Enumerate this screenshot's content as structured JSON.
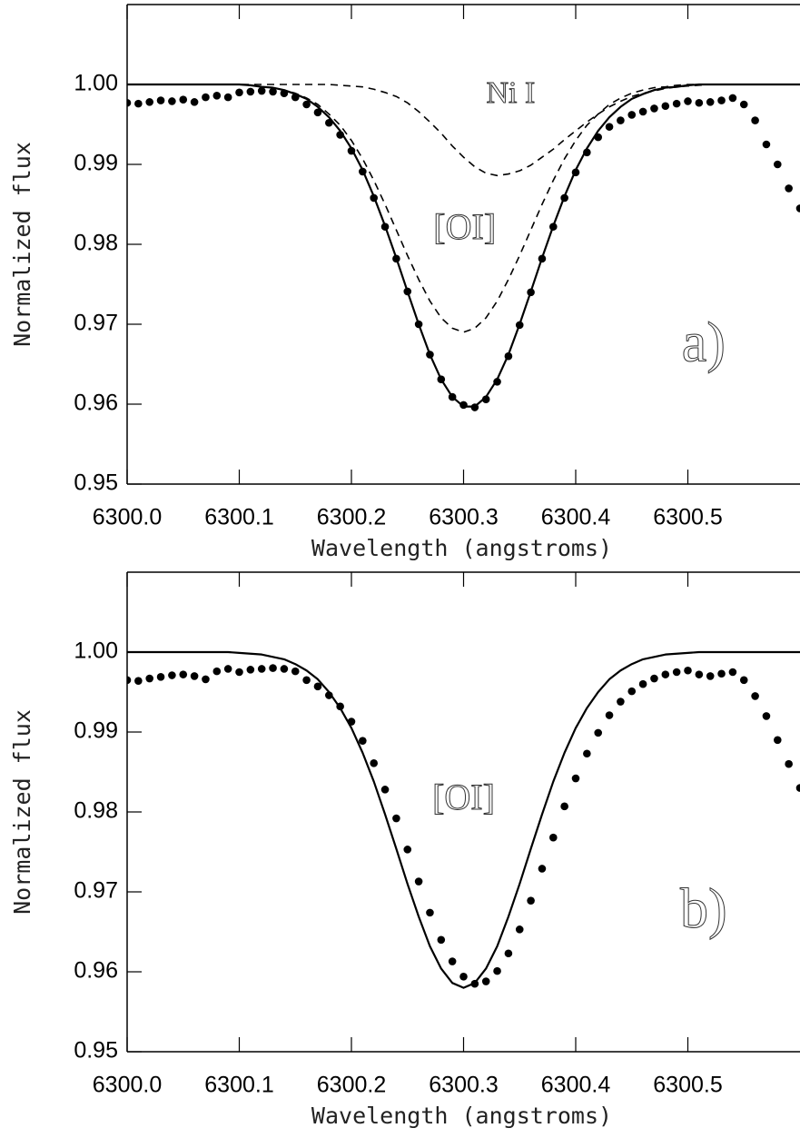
{
  "chart_data": [
    {
      "type": "line",
      "x_label": "Wavelength (angstroms)",
      "y_label": "Normalized flux",
      "x": [
        6300,
        6300.01,
        6300.02,
        6300.03,
        6300.04,
        6300.05,
        6300.06,
        6300.07,
        6300.08,
        6300.09,
        6300.1,
        6300.11,
        6300.12,
        6300.13,
        6300.14,
        6300.15,
        6300.16,
        6300.17,
        6300.18,
        6300.19,
        6300.2,
        6300.21,
        6300.22,
        6300.23,
        6300.24,
        6300.25,
        6300.26,
        6300.27,
        6300.28,
        6300.29,
        6300.3,
        6300.31,
        6300.32,
        6300.33,
        6300.34,
        6300.35,
        6300.36,
        6300.37,
        6300.38,
        6300.39,
        6300.4,
        6300.41,
        6300.42,
        6300.43,
        6300.44,
        6300.45,
        6300.46,
        6300.47,
        6300.48,
        6300.49,
        6300.5,
        6300.51,
        6300.52,
        6300.53,
        6300.54,
        6300.55,
        6300.56,
        6300.57,
        6300.58,
        6300.59,
        6300.6
      ],
      "series": [
        {
          "style": "dots",
          "color": "#000000",
          "values": [
            0.9977,
            0.9976,
            0.9978,
            0.998,
            0.9979,
            0.9981,
            0.9978,
            0.9984,
            0.9986,
            0.9984,
            0.999,
            0.9991,
            0.9992,
            0.9991,
            0.9989,
            0.9984,
            0.9975,
            0.9965,
            0.9952,
            0.9937,
            0.9917,
            0.9891,
            0.9858,
            0.9822,
            0.9782,
            0.9741,
            0.97,
            0.9662,
            0.9631,
            0.9609,
            0.9599,
            0.9596,
            0.9606,
            0.9628,
            0.966,
            0.9699,
            0.974,
            0.9782,
            0.9822,
            0.9858,
            0.989,
            0.9915,
            0.9934,
            0.9947,
            0.9955,
            0.9962,
            0.9966,
            0.997,
            0.9973,
            0.9976,
            0.9979,
            0.9977,
            0.9978,
            0.998,
            0.9983,
            0.9975,
            0.9955,
            0.9925,
            0.99,
            0.987,
            0.9845
          ]
        },
        {
          "style": "solid",
          "color": "#000000",
          "values": [
            1,
            1,
            1,
            1,
            1,
            1,
            1,
            1,
            1,
            1,
            1,
            0.9999,
            0.9997,
            0.9996,
            0.9993,
            0.9988,
            0.9982,
            0.9972,
            0.9959,
            0.9942,
            0.992,
            0.9893,
            0.986,
            0.9823,
            0.9783,
            0.9741,
            0.97,
            0.9662,
            0.9631,
            0.9609,
            0.9597,
            0.9597,
            0.9609,
            0.9631,
            0.9662,
            0.97,
            0.9741,
            0.9783,
            0.9823,
            0.986,
            0.9893,
            0.992,
            0.9942,
            0.9959,
            0.9972,
            0.9982,
            0.9988,
            0.9993,
            0.9996,
            0.9997,
            0.9999,
            1,
            1,
            1,
            1,
            1,
            1,
            1,
            1,
            1,
            1
          ]
        },
        {
          "style": "dashed",
          "color": "#000000",
          "values": [
            1,
            1,
            1,
            1,
            1,
            1,
            1,
            1,
            1,
            1,
            1,
            0.9999,
            0.9997,
            0.9996,
            0.9993,
            0.9989,
            0.9983,
            0.9975,
            0.9963,
            0.9949,
            0.993,
            0.9907,
            0.988,
            0.985,
            0.9818,
            0.9786,
            0.9756,
            0.9729,
            0.9708,
            0.9695,
            0.969,
            0.9695,
            0.9708,
            0.9729,
            0.9756,
            0.9786,
            0.9818,
            0.985,
            0.988,
            0.9907,
            0.993,
            0.9949,
            0.9963,
            0.9975,
            0.9983,
            0.9989,
            0.9993,
            0.9996,
            0.9997,
            0.9999,
            1,
            1,
            1,
            1,
            1,
            1,
            1,
            1,
            1,
            1,
            1
          ]
        },
        {
          "style": "dashed",
          "color": "#000000",
          "values": [
            1,
            1,
            1,
            1,
            1,
            1,
            1,
            1,
            1,
            1,
            1,
            1,
            1,
            1,
            1,
            1,
            1,
            1,
            1,
            0.9999,
            0.9998,
            0.9997,
            0.9994,
            0.999,
            0.9985,
            0.9977,
            0.9966,
            0.9953,
            0.9939,
            0.9923,
            0.9909,
            0.9897,
            0.9889,
            0.9886,
            0.9888,
            0.9892,
            0.9899,
            0.9909,
            0.9919,
            0.9931,
            0.9942,
            0.9953,
            0.9963,
            0.9972,
            0.9979,
            0.9985,
            0.9989,
            0.9992,
            0.9995,
            0.9997,
            0.9998,
            0.9999,
            1,
            1,
            1,
            1,
            1,
            1,
            1,
            1,
            1
          ]
        }
      ],
      "xlim": [
        6300.0,
        6300.6
      ],
      "xticks": [
        {
          "value": 6300.0,
          "label": "6300.0"
        },
        {
          "value": 6300.1,
          "label": "6300.1"
        },
        {
          "value": 6300.2,
          "label": "6300.2"
        },
        {
          "value": 6300.3,
          "label": "6300.3"
        },
        {
          "value": 6300.4,
          "label": "6300.4"
        },
        {
          "value": 6300.5,
          "label": "6300.5"
        }
      ],
      "ylim": [
        0.95,
        1.01
      ],
      "yticks": [
        0.95,
        0.96,
        0.97,
        0.98,
        0.99,
        {
          "value": 1.0,
          "label": "1.00"
        }
      ],
      "annotations": [
        {
          "text": "Ni I",
          "x": 6300.342,
          "y": 0.9986
        },
        {
          "text": "[OI]",
          "x": 6300.301,
          "y": 0.9817
        },
        {
          "text": "a)",
          "x": 6300.514,
          "y": 0.967
        }
      ]
    },
    {
      "type": "line",
      "x_label": "Wavelength (angstroms)",
      "y_label": "Normalized flux",
      "x": [
        6300,
        6300.01,
        6300.02,
        6300.03,
        6300.04,
        6300.05,
        6300.06,
        6300.07,
        6300.08,
        6300.09,
        6300.1,
        6300.11,
        6300.12,
        6300.13,
        6300.14,
        6300.15,
        6300.16,
        6300.17,
        6300.18,
        6300.19,
        6300.2,
        6300.21,
        6300.22,
        6300.23,
        6300.24,
        6300.25,
        6300.26,
        6300.27,
        6300.28,
        6300.29,
        6300.3,
        6300.31,
        6300.32,
        6300.33,
        6300.34,
        6300.35,
        6300.36,
        6300.37,
        6300.38,
        6300.39,
        6300.4,
        6300.41,
        6300.42,
        6300.43,
        6300.44,
        6300.45,
        6300.46,
        6300.47,
        6300.48,
        6300.49,
        6300.5,
        6300.51,
        6300.52,
        6300.53,
        6300.54,
        6300.55,
        6300.56,
        6300.57,
        6300.58,
        6300.59,
        6300.6
      ],
      "series": [
        {
          "style": "dots",
          "color": "#000000",
          "values": [
            0.9965,
            0.9964,
            0.9967,
            0.9969,
            0.9971,
            0.9972,
            0.997,
            0.9966,
            0.9976,
            0.9979,
            0.9975,
            0.9978,
            0.9979,
            0.998,
            0.9979,
            0.9976,
            0.9965,
            0.9957,
            0.9946,
            0.9932,
            0.9913,
            0.9889,
            0.9861,
            0.9828,
            0.9792,
            0.9753,
            0.9713,
            0.9674,
            0.964,
            0.9613,
            0.9594,
            0.9585,
            0.9588,
            0.9601,
            0.9623,
            0.9653,
            0.9689,
            0.9729,
            0.9768,
            0.9807,
            0.9842,
            0.9873,
            0.9899,
            0.9921,
            0.9938,
            0.9951,
            0.996,
            0.9967,
            0.9972,
            0.9975,
            0.9977,
            0.9972,
            0.997,
            0.9973,
            0.9975,
            0.9965,
            0.9945,
            0.992,
            0.989,
            0.986,
            0.983
          ]
        },
        {
          "style": "solid",
          "color": "#000000",
          "values": [
            1,
            1,
            1,
            1,
            1,
            1,
            1,
            1,
            1,
            1,
            0.9999,
            0.9998,
            0.9997,
            0.9994,
            0.9991,
            0.9985,
            0.9977,
            0.9966,
            0.995,
            0.993,
            0.9905,
            0.9874,
            0.9838,
            0.9797,
            0.9754,
            0.971,
            0.9669,
            0.9632,
            0.9604,
            0.9586,
            0.958,
            0.9586,
            0.9604,
            0.9632,
            0.9669,
            0.971,
            0.9754,
            0.9797,
            0.9838,
            0.9874,
            0.9905,
            0.993,
            0.995,
            0.9966,
            0.9977,
            0.9985,
            0.9991,
            0.9994,
            0.9997,
            0.9998,
            0.9999,
            1,
            1,
            1,
            1,
            1,
            1,
            1,
            1,
            1,
            1
          ]
        }
      ],
      "xlim": [
        6300.0,
        6300.6
      ],
      "xticks": [
        {
          "value": 6300.0,
          "label": "6300.0"
        },
        {
          "value": 6300.1,
          "label": "6300.1"
        },
        {
          "value": 6300.2,
          "label": "6300.2"
        },
        {
          "value": 6300.3,
          "label": "6300.3"
        },
        {
          "value": 6300.4,
          "label": "6300.4"
        },
        {
          "value": 6300.5,
          "label": "6300.5"
        }
      ],
      "ylim": [
        0.95,
        1.01
      ],
      "yticks": [
        0.95,
        0.96,
        0.97,
        0.98,
        0.99,
        {
          "value": 1.0,
          "label": "1.00"
        }
      ],
      "annotations": [
        {
          "text": "[OI]",
          "x": 6300.3,
          "y": 0.9814
        },
        {
          "text": "b)",
          "x": 6300.514,
          "y": 0.9672
        }
      ]
    }
  ]
}
